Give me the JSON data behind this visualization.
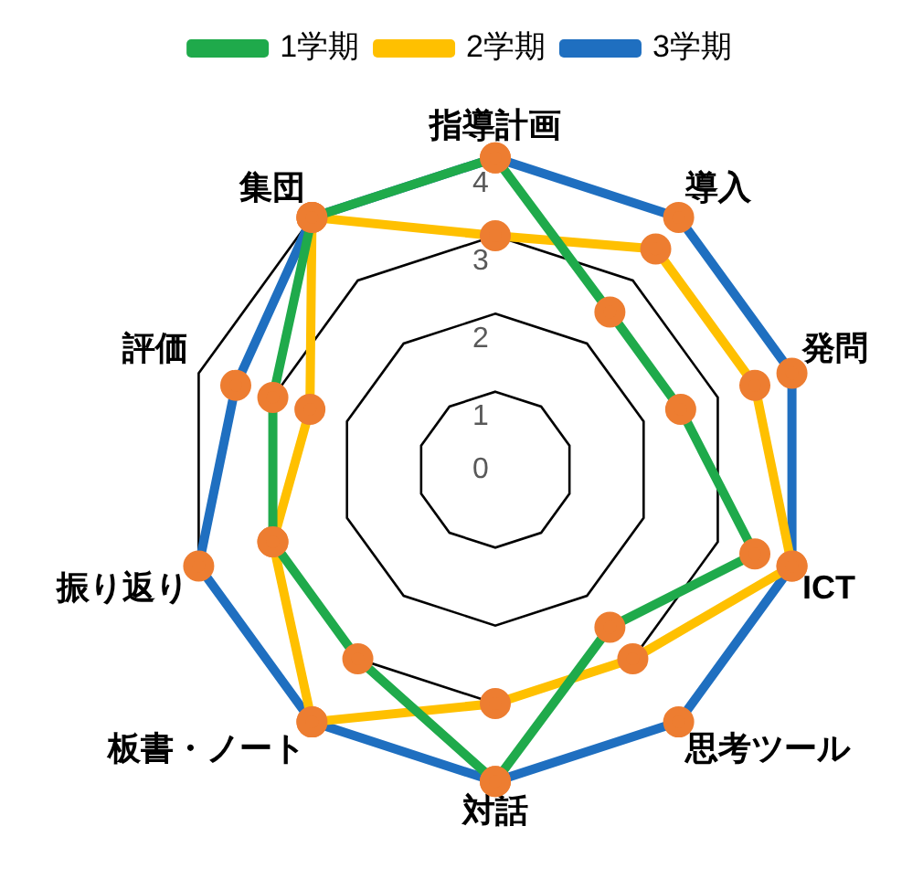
{
  "chart_data": {
    "type": "radar",
    "categories": [
      "指導計画",
      "導入",
      "発問",
      "ICT",
      "思考ツール",
      "対話",
      "板書・ノート",
      "振り返り",
      "評価",
      "集団"
    ],
    "series": [
      {
        "name": "1学期",
        "color": "#1faa4b",
        "colors": [
          "#ed7d31",
          "#ed7d31",
          "#ed7d31",
          "#ed7d31",
          "#ed7d31",
          "#ed7d31",
          "#ed7d31",
          "#ed7d31",
          "#ed7d31",
          "#ed7d31"
        ],
        "values": [
          4,
          2.5,
          2.5,
          3.5,
          2.5,
          4,
          3,
          3,
          3,
          4
        ]
      },
      {
        "name": "2学期",
        "color": "#ffc000",
        "colors": [
          "#ed7d31",
          "#ed7d31",
          "#ed7d31",
          "#ed7d31",
          "#ed7d31",
          "#ed7d31",
          "#ed7d31",
          "#ed7d31",
          "#ed7d31",
          "#ed7d31"
        ],
        "values": [
          3,
          3.5,
          3.5,
          4,
          3,
          3,
          4,
          3,
          2.5,
          4
        ]
      },
      {
        "name": "3学期",
        "color": "#1f6fc0",
        "colors": [
          "#ed7d31",
          "#ed7d31",
          "#ed7d31",
          "#ed7d31",
          "#ed7d31",
          "#ed7d31",
          "#ed7d31",
          "#ed7d31",
          "#ed7d31",
          "#ed7d31"
        ],
        "values": [
          4,
          4,
          4,
          4,
          4,
          4,
          4,
          4,
          3.5,
          4
        ]
      }
    ],
    "ylim": [
      0,
      4
    ],
    "yticks": [
      0,
      1,
      2,
      3,
      4
    ],
    "grid": true,
    "legend": "top",
    "marker": "circle",
    "line_style": "solid"
  }
}
